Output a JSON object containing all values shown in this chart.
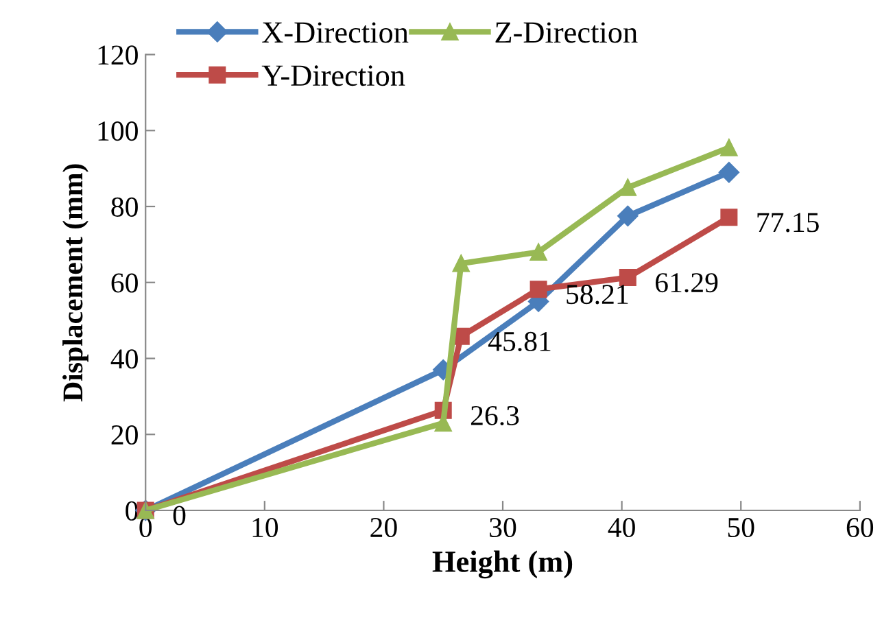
{
  "chart_data": {
    "type": "line",
    "xlabel": "Height (m)",
    "ylabel": "Displacement (mm)",
    "xlim": [
      0,
      60
    ],
    "xticks": [
      0,
      10,
      20,
      30,
      40,
      50,
      60
    ],
    "ylim": [
      0,
      120
    ],
    "yticks": [
      0,
      20,
      40,
      60,
      80,
      100,
      120
    ],
    "grid": false,
    "legend": "top left",
    "line_style": "solid",
    "series": [
      {
        "name": "X-Direction",
        "color": "#4a7ebb",
        "marker": "diamond",
        "x": [
          0,
          25,
          33,
          40.5,
          49
        ],
        "values": [
          0,
          37,
          55,
          77.5,
          89
        ]
      },
      {
        "name": "Y-Direction",
        "color": "#be4b48",
        "marker": "square",
        "x": [
          0,
          25,
          26.5,
          33,
          40.5,
          49
        ],
        "values": [
          0,
          26.3,
          45.81,
          58.21,
          61.29,
          77.15
        ],
        "value_labels": [
          "0",
          "26.3",
          "45.81",
          "58.21",
          "61.29",
          "77.15"
        ]
      },
      {
        "name": "Z-Direction",
        "color": "#98b954",
        "marker": "triangle",
        "x": [
          0,
          25,
          26.5,
          33,
          40.5,
          49
        ],
        "values": [
          0,
          23,
          65,
          68,
          85,
          95.5
        ]
      }
    ]
  }
}
